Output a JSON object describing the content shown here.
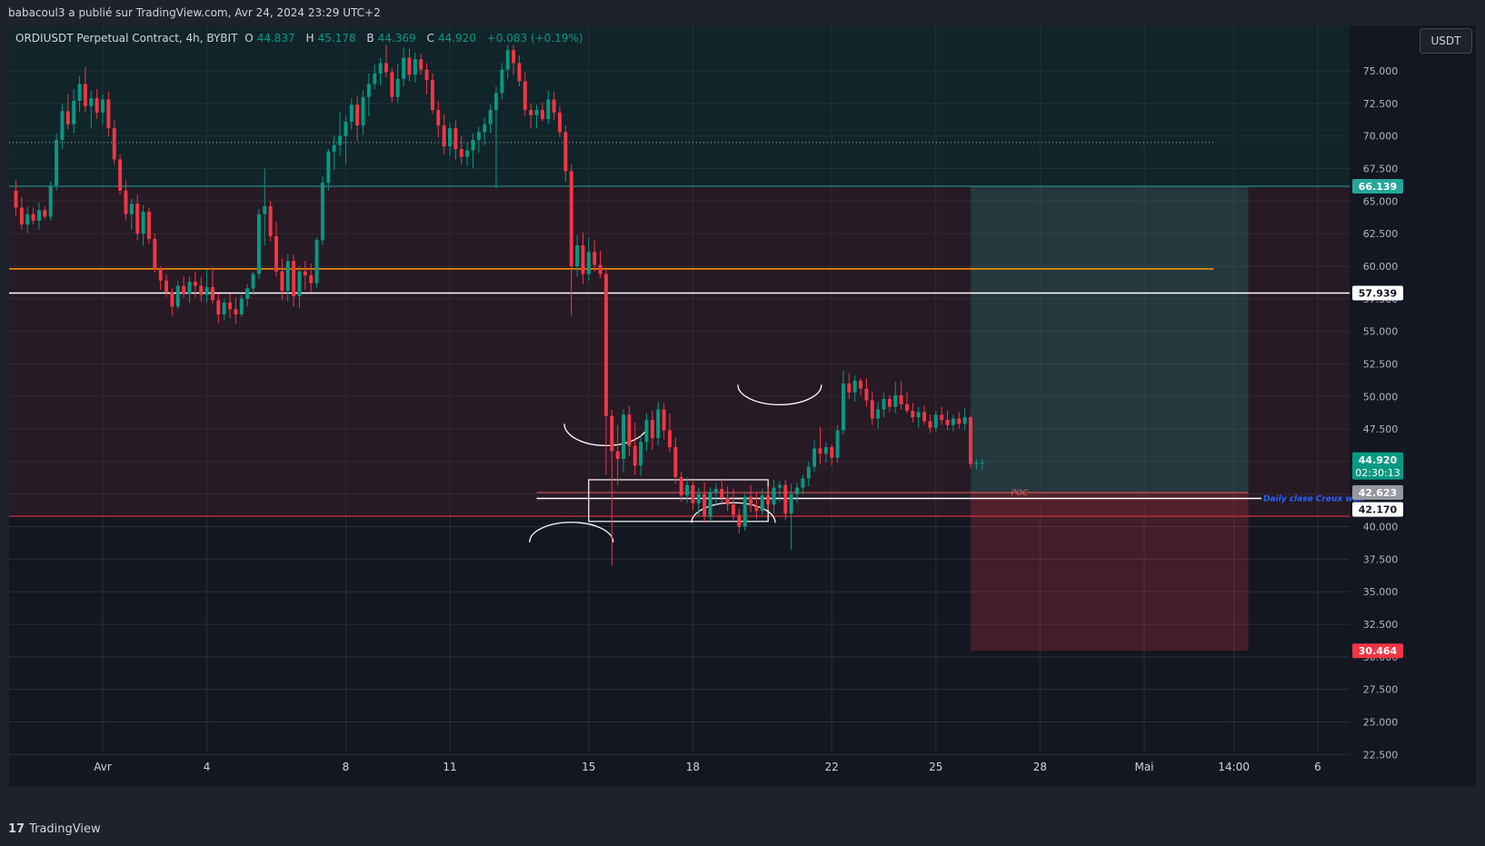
{
  "header": {
    "published_text": "babacoul3 a publié sur TradingView.com, Avr 24, 2024 23:29 UTC+2"
  },
  "legend": {
    "symbol": "ORDIUSDT Perpetual Contract, 4h, BYBIT",
    "open_label": "O",
    "open": "44.837",
    "high_label": "H",
    "high": "45.178",
    "low_label": "B",
    "low": "44.369",
    "close_label": "C",
    "close": "44.920",
    "change": "+0.083 (+0.19%)"
  },
  "currency_button": "USDT",
  "footer": {
    "logo_mark": "17",
    "logo_text": "TradingView"
  },
  "colors": {
    "up": "#089981",
    "down": "#f23645",
    "background": "#131722",
    "grid": "#2a2e39",
    "orange_line": "#ff9800",
    "poc": "#e06060",
    "annotation_blue": "#2962ff"
  },
  "chart_data": {
    "type": "candlestick",
    "timeframe": "4h",
    "ylim": [
      22.5,
      77.0
    ],
    "y_ticks": [
      "75.000",
      "72.500",
      "70.000",
      "67.500",
      "65.000",
      "62.500",
      "60.000",
      "57.500",
      "55.000",
      "52.500",
      "50.000",
      "47.500",
      "45.000",
      "42.500",
      "40.000",
      "37.500",
      "35.000",
      "32.500",
      "30.000",
      "27.500",
      "25.000",
      "22.500"
    ],
    "x_ticks": [
      {
        "label": "Avr",
        "date": "2024-04-01"
      },
      {
        "label": "4",
        "date": "2024-04-04"
      },
      {
        "label": "8",
        "date": "2024-04-08"
      },
      {
        "label": "11",
        "date": "2024-04-11"
      },
      {
        "label": "15",
        "date": "2024-04-15"
      },
      {
        "label": "18",
        "date": "2024-04-18"
      },
      {
        "label": "22",
        "date": "2024-04-22"
      },
      {
        "label": "25",
        "date": "2024-04-25"
      },
      {
        "label": "28",
        "date": "2024-04-28"
      },
      {
        "label": "Mai",
        "date": "2024-05-01"
      },
      {
        "label": "14:00",
        "date": "2024-05-03T14:00"
      },
      {
        "label": "6",
        "date": "2024-05-06"
      }
    ],
    "series": [
      {
        "start": "2024-03-29T12:00",
        "candles": [
          [
            65.8,
            66.6,
            63.9,
            64.5
          ],
          [
            64.5,
            65.3,
            62.8,
            63.2
          ],
          [
            63.2,
            64.6,
            62.5,
            64.0
          ],
          [
            64.0,
            64.5,
            63.2,
            63.5
          ],
          [
            63.5,
            64.9,
            62.8,
            64.3
          ],
          [
            64.3,
            64.6,
            63.6,
            63.8
          ],
          [
            63.8,
            66.5,
            63.5,
            66.2
          ],
          [
            66.2,
            70.2,
            65.8,
            69.7
          ],
          [
            69.7,
            72.5,
            69.0,
            71.9
          ],
          [
            71.9,
            73.2,
            70.5,
            70.9
          ],
          [
            70.9,
            73.6,
            70.2,
            72.7
          ],
          [
            72.7,
            74.6,
            71.8,
            74.0
          ],
          [
            74.0,
            75.3,
            71.8,
            72.3
          ],
          [
            72.3,
            73.5,
            70.6,
            72.9
          ],
          [
            72.9,
            73.6,
            71.3,
            71.8
          ],
          [
            71.8,
            73.2,
            70.9,
            72.8
          ],
          [
            72.8,
            73.4,
            70.0,
            70.6
          ],
          [
            70.6,
            71.2,
            67.8,
            68.2
          ],
          [
            68.2,
            68.6,
            65.5,
            65.8
          ],
          [
            65.8,
            66.6,
            63.5,
            64.0
          ],
          [
            64.0,
            65.2,
            62.8,
            64.8
          ],
          [
            64.8,
            65.5,
            62.0,
            62.5
          ],
          [
            62.5,
            64.7,
            61.6,
            64.2
          ],
          [
            64.2,
            64.5,
            61.7,
            62.1
          ],
          [
            62.1,
            62.5,
            59.5,
            59.8
          ],
          [
            59.8,
            60.0,
            58.2,
            58.9
          ],
          [
            58.9,
            59.4,
            57.6,
            58.0
          ],
          [
            58.0,
            58.3,
            56.2,
            56.9
          ],
          [
            56.9,
            58.9,
            56.7,
            58.5
          ],
          [
            58.5,
            59.2,
            57.6,
            57.9
          ],
          [
            57.9,
            59.2,
            57.2,
            58.8
          ],
          [
            58.8,
            59.6,
            57.6,
            58.5
          ],
          [
            58.5,
            59.2,
            57.3,
            57.8
          ],
          [
            57.8,
            59.7,
            57.2,
            58.4
          ],
          [
            58.4,
            59.9,
            57.1,
            57.4
          ],
          [
            57.4,
            57.9,
            55.6,
            56.3
          ],
          [
            56.3,
            57.5,
            55.8,
            57.2
          ],
          [
            57.2,
            57.9,
            56.0,
            56.7
          ],
          [
            56.7,
            57.6,
            55.6,
            56.3
          ],
          [
            56.3,
            57.8,
            56.1,
            57.5
          ],
          [
            57.5,
            58.6,
            56.9,
            58.3
          ],
          [
            58.3,
            59.6,
            57.8,
            59.4
          ],
          [
            59.4,
            64.4,
            59.0,
            64.0
          ],
          [
            64.0,
            67.5,
            61.6,
            64.6
          ],
          [
            64.6,
            65.0,
            61.9,
            62.3
          ],
          [
            62.3,
            63.4,
            59.2,
            59.6
          ],
          [
            59.6,
            60.6,
            57.4,
            58.1
          ],
          [
            58.1,
            60.9,
            57.3,
            60.4
          ],
          [
            60.4,
            60.9,
            56.9,
            57.7
          ],
          [
            57.7,
            60.0,
            56.8,
            59.6
          ],
          [
            59.6,
            60.4,
            58.2,
            59.3
          ],
          [
            59.3,
            60.2,
            58.0,
            58.7
          ],
          [
            58.7,
            62.2,
            58.3,
            62.0
          ],
          [
            62.0,
            66.9,
            61.6,
            66.4
          ],
          [
            66.4,
            69.0,
            65.8,
            68.8
          ],
          [
            68.8,
            70.0,
            67.4,
            69.3
          ],
          [
            69.3,
            71.8,
            68.5,
            70.0
          ],
          [
            70.0,
            71.6,
            67.9,
            71.1
          ],
          [
            71.1,
            72.9,
            70.5,
            72.4
          ],
          [
            72.4,
            73.1,
            69.6,
            70.8
          ],
          [
            70.8,
            73.5,
            70.1,
            73.0
          ],
          [
            73.0,
            74.8,
            71.5,
            74.0
          ],
          [
            74.0,
            75.5,
            73.6,
            74.8
          ],
          [
            74.8,
            76.0,
            73.9,
            75.6
          ],
          [
            75.6,
            77.0,
            74.5,
            74.9
          ],
          [
            74.9,
            75.2,
            72.6,
            73.0
          ],
          [
            73.0,
            75.5,
            72.5,
            74.4
          ],
          [
            74.4,
            76.8,
            73.8,
            76.0
          ],
          [
            76.0,
            76.7,
            74.2,
            74.7
          ],
          [
            74.7,
            76.4,
            74.1,
            75.9
          ],
          [
            75.9,
            76.3,
            74.7,
            75.1
          ],
          [
            75.1,
            75.6,
            73.2,
            74.3
          ],
          [
            74.3,
            74.8,
            71.7,
            72.0
          ],
          [
            72.0,
            72.7,
            69.9,
            70.8
          ],
          [
            70.8,
            71.7,
            68.6,
            69.2
          ],
          [
            69.2,
            71.0,
            68.5,
            70.6
          ],
          [
            70.6,
            71.2,
            68.2,
            69.0
          ],
          [
            69.0,
            70.0,
            67.8,
            68.4
          ],
          [
            68.4,
            69.5,
            67.7,
            68.9
          ],
          [
            68.9,
            70.2,
            67.5,
            69.7
          ],
          [
            69.7,
            70.7,
            68.7,
            70.3
          ],
          [
            70.3,
            71.4,
            69.3,
            70.9
          ],
          [
            70.9,
            72.4,
            70.2,
            72.0
          ],
          [
            72.0,
            73.8,
            66.0,
            73.3
          ],
          [
            73.3,
            75.6,
            72.8,
            75.1
          ],
          [
            75.1,
            77.0,
            74.4,
            76.6
          ],
          [
            76.6,
            77.0,
            74.7,
            75.6
          ],
          [
            75.6,
            76.2,
            73.8,
            74.2
          ],
          [
            74.2,
            74.9,
            71.5,
            72.0
          ],
          [
            72.0,
            72.5,
            70.6,
            71.6
          ],
          [
            71.6,
            72.4,
            70.6,
            72.0
          ],
          [
            72.0,
            72.6,
            71.1,
            71.3
          ],
          [
            71.3,
            73.5,
            70.9,
            72.8
          ],
          [
            72.8,
            73.4,
            71.2,
            71.8
          ],
          [
            71.8,
            72.3,
            69.9,
            70.3
          ],
          [
            70.3,
            70.8,
            66.5,
            67.3
          ],
          [
            67.3,
            67.8,
            56.2,
            60.0
          ],
          [
            60.0,
            62.4,
            59.2,
            61.6
          ],
          [
            61.6,
            62.6,
            58.6,
            59.4
          ],
          [
            59.4,
            62.2,
            58.9,
            61.1
          ],
          [
            61.1,
            62.0,
            59.6,
            60.1
          ],
          [
            60.1,
            61.2,
            59.1,
            59.4
          ],
          [
            59.4,
            59.8,
            44.0,
            48.5
          ],
          [
            48.5,
            49.0,
            37.0,
            45.8
          ],
          [
            45.8,
            47.8,
            43.2,
            45.2
          ],
          [
            45.2,
            49.0,
            44.2,
            48.6
          ],
          [
            48.6,
            49.3,
            45.4,
            46.2
          ],
          [
            46.2,
            48.0,
            44.0,
            44.7
          ],
          [
            44.7,
            47.0,
            43.9,
            46.5
          ],
          [
            46.5,
            48.7,
            45.8,
            48.2
          ],
          [
            48.2,
            48.9,
            45.9,
            46.8
          ],
          [
            46.8,
            49.6,
            46.2,
            49.0
          ],
          [
            49.0,
            49.5,
            46.7,
            47.4
          ],
          [
            47.4,
            48.7,
            45.7,
            46.1
          ],
          [
            46.1,
            46.8,
            43.3,
            43.8
          ],
          [
            43.8,
            44.2,
            41.9,
            42.4
          ],
          [
            42.4,
            43.8,
            41.8,
            43.2
          ],
          [
            43.2,
            43.6,
            41.3,
            41.8
          ],
          [
            41.8,
            43.0,
            40.8,
            42.5
          ],
          [
            42.5,
            43.4,
            40.3,
            40.8
          ],
          [
            40.8,
            43.0,
            40.5,
            42.6
          ],
          [
            42.6,
            43.3,
            41.6,
            42.9
          ],
          [
            42.9,
            43.6,
            41.8,
            42.2
          ],
          [
            42.2,
            43.1,
            41.2,
            41.7
          ],
          [
            41.7,
            42.9,
            40.4,
            40.9
          ],
          [
            40.9,
            41.4,
            39.5,
            40.0
          ],
          [
            40.0,
            42.5,
            39.7,
            42.3
          ],
          [
            42.3,
            43.2,
            41.1,
            41.6
          ],
          [
            41.6,
            42.6,
            40.6,
            41.2
          ],
          [
            41.2,
            42.9,
            40.9,
            42.4
          ],
          [
            42.4,
            43.1,
            41.3,
            41.7
          ],
          [
            41.7,
            43.6,
            41.0,
            43.0
          ],
          [
            43.0,
            43.5,
            41.9,
            43.2
          ],
          [
            43.2,
            43.6,
            40.5,
            41.0
          ],
          [
            41.0,
            43.3,
            38.2,
            42.5
          ],
          [
            42.5,
            43.4,
            41.8,
            43.0
          ],
          [
            43.0,
            44.0,
            42.5,
            43.7
          ],
          [
            43.7,
            45.0,
            43.1,
            44.6
          ],
          [
            44.6,
            46.6,
            44.2,
            46.0
          ],
          [
            46.0,
            47.7,
            44.8,
            45.6
          ],
          [
            45.6,
            46.5,
            44.9,
            46.1
          ],
          [
            46.1,
            46.3,
            44.7,
            45.3
          ],
          [
            45.3,
            47.8,
            44.9,
            47.4
          ],
          [
            47.4,
            52.0,
            47.1,
            51.0
          ],
          [
            51.0,
            51.8,
            49.8,
            50.3
          ],
          [
            50.3,
            51.6,
            49.6,
            51.2
          ],
          [
            51.2,
            51.4,
            50.1,
            50.6
          ],
          [
            50.6,
            51.4,
            49.2,
            49.7
          ],
          [
            49.7,
            50.4,
            47.8,
            48.3
          ],
          [
            48.3,
            49.6,
            47.5,
            49.0
          ],
          [
            49.0,
            50.3,
            48.4,
            49.8
          ],
          [
            49.8,
            50.1,
            48.8,
            49.2
          ],
          [
            49.2,
            51.1,
            48.7,
            50.1
          ],
          [
            50.1,
            51.2,
            49.0,
            49.4
          ],
          [
            49.4,
            50.3,
            48.7,
            48.9
          ],
          [
            48.9,
            49.5,
            48.0,
            48.4
          ],
          [
            48.4,
            49.2,
            47.6,
            48.8
          ],
          [
            48.8,
            49.3,
            47.8,
            48.1
          ],
          [
            48.1,
            48.6,
            47.2,
            47.6
          ],
          [
            47.6,
            48.9,
            47.3,
            48.6
          ],
          [
            48.6,
            49.2,
            47.8,
            48.2
          ],
          [
            48.2,
            48.9,
            47.4,
            47.8
          ],
          [
            47.8,
            48.6,
            47.3,
            48.3
          ],
          [
            48.3,
            48.8,
            47.5,
            47.9
          ],
          [
            47.9,
            49.1,
            47.4,
            48.4
          ],
          [
            48.4,
            48.5,
            44.5,
            44.8
          ],
          [
            44.8,
            45.2,
            44.4,
            44.9
          ],
          [
            44.837,
            45.178,
            44.369,
            44.92
          ]
        ]
      }
    ],
    "horizontal_levels": [
      {
        "value": 69.5,
        "style": "dotted"
      },
      {
        "value": 66.139,
        "label": "66.139",
        "style": "solid"
      },
      {
        "value": 59.8,
        "style": "solid"
      },
      {
        "value": 57.939,
        "label": "57.939",
        "style": "solid"
      },
      {
        "value": 42.623,
        "label": "42.623",
        "style": "solid"
      },
      {
        "value": 42.17,
        "label": "42.170",
        "style": "solid"
      },
      {
        "value": 40.8,
        "style": "solid"
      }
    ],
    "annotations": {
      "poc_text": "POC",
      "daily_close_text": "Daily clase Creux wax",
      "current_price": "44.920",
      "countdown": "02:30:13",
      "position": {
        "entry": 42.623,
        "target": 66.139,
        "stop": 30.464,
        "stop_label": "30.464"
      }
    }
  }
}
